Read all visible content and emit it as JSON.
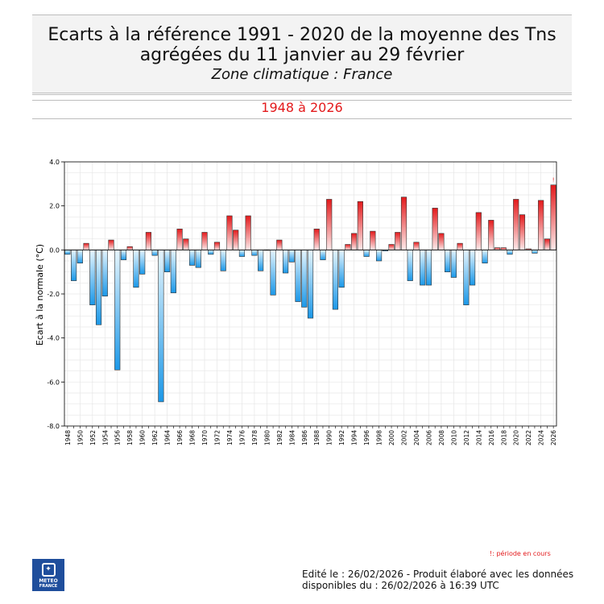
{
  "header": {
    "title_line1": "Ecarts à la référence 1991 - 2020 de la moyenne des Tns",
    "title_line2": "agrégées du 11 janvier au 29 février",
    "subtitle": "Zone climatique : France",
    "period": "1948 à 2026"
  },
  "footer": {
    "note": "!: période en cours",
    "edited_line1": "Edité le : 26/02/2026 - Produit élaboré avec les données",
    "edited_line2": "disponibles du : 26/02/2026 à 16:39 UTC",
    "logo_line1": "METEO",
    "logo_line2": "FRANCE"
  },
  "colors": {
    "positive_dark": "#e31a1c",
    "positive_light": "#fdeaea",
    "negative_dark": "#1b98e8",
    "negative_light": "#e6f5fd"
  },
  "chart_data": {
    "type": "bar",
    "ylabel": "Ecart à la normale (°C)",
    "ylim": [
      -8,
      4
    ],
    "yticks": [
      4,
      2,
      0,
      -2,
      -4,
      -6,
      -8
    ],
    "ytick_labels": [
      "4.0",
      "2.0",
      "0.0",
      "-2.0",
      "-4.0",
      "-6.0",
      "-8.0"
    ],
    "grid": true,
    "current_period_marker": "!",
    "x": [
      1948,
      1949,
      1950,
      1951,
      1952,
      1953,
      1954,
      1955,
      1956,
      1957,
      1958,
      1959,
      1960,
      1961,
      1962,
      1963,
      1964,
      1965,
      1966,
      1967,
      1968,
      1969,
      1970,
      1971,
      1972,
      1973,
      1974,
      1975,
      1976,
      1977,
      1978,
      1979,
      1980,
      1981,
      1982,
      1983,
      1984,
      1985,
      1986,
      1987,
      1988,
      1989,
      1990,
      1991,
      1992,
      1993,
      1994,
      1995,
      1996,
      1997,
      1998,
      1999,
      2000,
      2001,
      2002,
      2003,
      2004,
      2005,
      2006,
      2007,
      2008,
      2009,
      2010,
      2011,
      2012,
      2013,
      2014,
      2015,
      2016,
      2017,
      2018,
      2019,
      2020,
      2021,
      2022,
      2023,
      2024,
      2025,
      2026
    ],
    "values": [
      -0.2,
      -1.4,
      -0.6,
      0.3,
      -2.5,
      -3.4,
      -2.1,
      0.45,
      -5.45,
      -0.45,
      0.15,
      -1.7,
      -1.1,
      0.8,
      -0.25,
      -6.9,
      -1.0,
      -1.95,
      0.95,
      0.5,
      -0.7,
      -0.8,
      0.8,
      -0.2,
      0.35,
      -0.95,
      1.55,
      0.9,
      -0.3,
      1.55,
      -0.25,
      -0.95,
      0.0,
      -2.05,
      0.45,
      -1.05,
      -0.55,
      -2.35,
      -2.6,
      -3.1,
      0.95,
      -0.45,
      2.3,
      -2.7,
      -1.7,
      0.25,
      0.75,
      2.2,
      -0.3,
      0.85,
      -0.5,
      -0.05,
      0.25,
      0.8,
      2.4,
      -1.4,
      0.35,
      -1.6,
      -1.6,
      1.9,
      0.75,
      -1.0,
      -1.25,
      0.3,
      -2.5,
      -1.6,
      1.7,
      -0.6,
      1.35,
      0.1,
      0.1,
      -0.2,
      2.3,
      1.6,
      0.05,
      -0.15,
      2.25,
      0.5,
      2.95
    ],
    "x_tick_labels": [
      "1948",
      "1950",
      "1952",
      "1954",
      "1956",
      "1958",
      "1960",
      "1962",
      "1964",
      "1966",
      "1968",
      "1970",
      "1972",
      "1974",
      "1976",
      "1978",
      "1980",
      "1982",
      "1984",
      "1986",
      "1988",
      "1990",
      "1992",
      "1994",
      "1996",
      "1998",
      "2000",
      "2002",
      "2004",
      "2006",
      "2008",
      "2010",
      "2012",
      "2014",
      "2016",
      "2018",
      "2020",
      "2022",
      "2024",
      "2026"
    ]
  }
}
